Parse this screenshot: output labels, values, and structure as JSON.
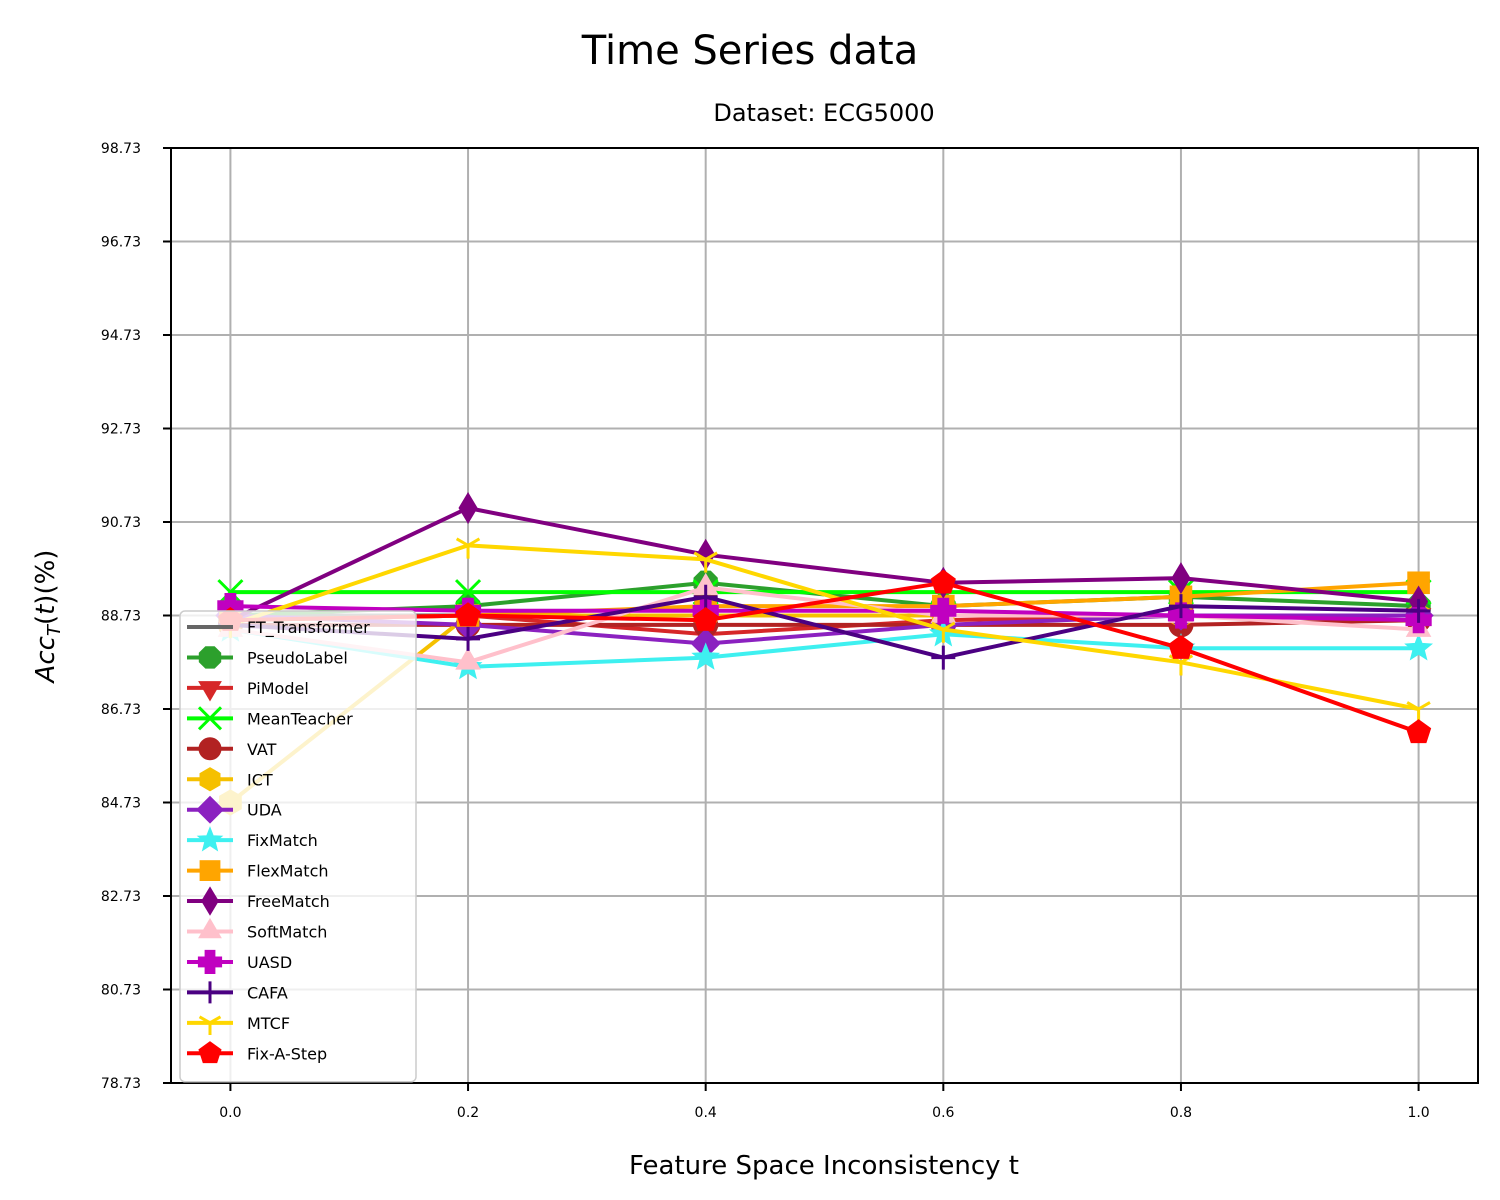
{
  "chart_data": {
    "type": "line",
    "title": "Time Series data",
    "subtitle": "Dataset: ECG5000",
    "xlabel": "Feature Space Inconsistency t",
    "ylabel": "Acc_T(t)(%)",
    "x": [
      0.0,
      0.2,
      0.4,
      0.6,
      0.8,
      1.0
    ],
    "x_ticks": [
      "0.0",
      "0.2",
      "0.4",
      "0.6",
      "0.8",
      "1.0"
    ],
    "y_ticks": [
      "78.73",
      "80.73",
      "82.73",
      "84.73",
      "86.73",
      "88.73",
      "90.73",
      "92.73",
      "94.73",
      "96.73",
      "98.73"
    ],
    "xlim": [
      -0.05,
      1.05
    ],
    "ylim": [
      78.73,
      98.73
    ],
    "grid": true,
    "legend_position": "lower-left",
    "series": [
      {
        "name": "FT_Transformer",
        "color": "#666666",
        "marker": "none",
        "values": [
          88.73,
          88.73,
          88.73,
          88.73,
          88.73,
          88.73
        ]
      },
      {
        "name": "PseudoLabel",
        "color": "#2ca02c",
        "marker": "octagon",
        "values": [
          88.73,
          88.93,
          89.43,
          88.93,
          89.13,
          88.93
        ]
      },
      {
        "name": "PiModel",
        "color": "#d62728",
        "marker": "triangle-down",
        "values": [
          88.63,
          88.73,
          88.33,
          88.63,
          88.73,
          88.73
        ]
      },
      {
        "name": "MeanTeacher",
        "color": "#00ff00",
        "marker": "x",
        "values": [
          89.23,
          89.23,
          89.23,
          89.23,
          89.23,
          89.23
        ]
      },
      {
        "name": "VAT",
        "color": "#b22222",
        "marker": "circle",
        "values": [
          88.53,
          88.53,
          88.53,
          88.53,
          88.53,
          88.63
        ]
      },
      {
        "name": "ICT",
        "color": "#f5c000",
        "marker": "hexagon",
        "values": [
          84.73,
          88.73,
          88.73,
          88.73,
          88.73,
          88.73
        ]
      },
      {
        "name": "UDA",
        "color": "#8b21c0",
        "marker": "diamond",
        "values": [
          88.73,
          88.53,
          88.13,
          88.53,
          88.73,
          88.73
        ]
      },
      {
        "name": "FixMatch",
        "color": "#3ef0f0",
        "marker": "star",
        "values": [
          88.43,
          87.63,
          87.83,
          88.33,
          88.03,
          88.03
        ]
      },
      {
        "name": "FlexMatch",
        "color": "#ffa500",
        "marker": "square",
        "values": [
          88.63,
          88.73,
          88.93,
          88.93,
          89.13,
          89.43
        ]
      },
      {
        "name": "FreeMatch",
        "color": "#800080",
        "marker": "thin-diamond",
        "values": [
          88.63,
          91.03,
          90.03,
          89.43,
          89.53,
          89.03
        ]
      },
      {
        "name": "SoftMatch",
        "color": "#ffc0cb",
        "marker": "triangle-up",
        "values": [
          88.43,
          87.73,
          89.33,
          88.73,
          88.73,
          88.43
        ]
      },
      {
        "name": "UASD",
        "color": "#c000c0",
        "marker": "plus-filled",
        "values": [
          88.93,
          88.83,
          88.83,
          88.83,
          88.73,
          88.63
        ]
      },
      {
        "name": "CAFA",
        "color": "#4b0082",
        "marker": "plus",
        "values": [
          88.53,
          88.23,
          89.13,
          87.83,
          88.93,
          88.83
        ]
      },
      {
        "name": "MTCF",
        "color": "#ffd700",
        "marker": "tri-down",
        "values": [
          88.53,
          90.23,
          89.93,
          88.43,
          87.73,
          86.73
        ]
      },
      {
        "name": "Fix-A-Step",
        "color": "#ff0000",
        "marker": "pentagon",
        "values": [
          88.63,
          88.73,
          88.63,
          89.43,
          88.03,
          86.23
        ]
      }
    ]
  }
}
